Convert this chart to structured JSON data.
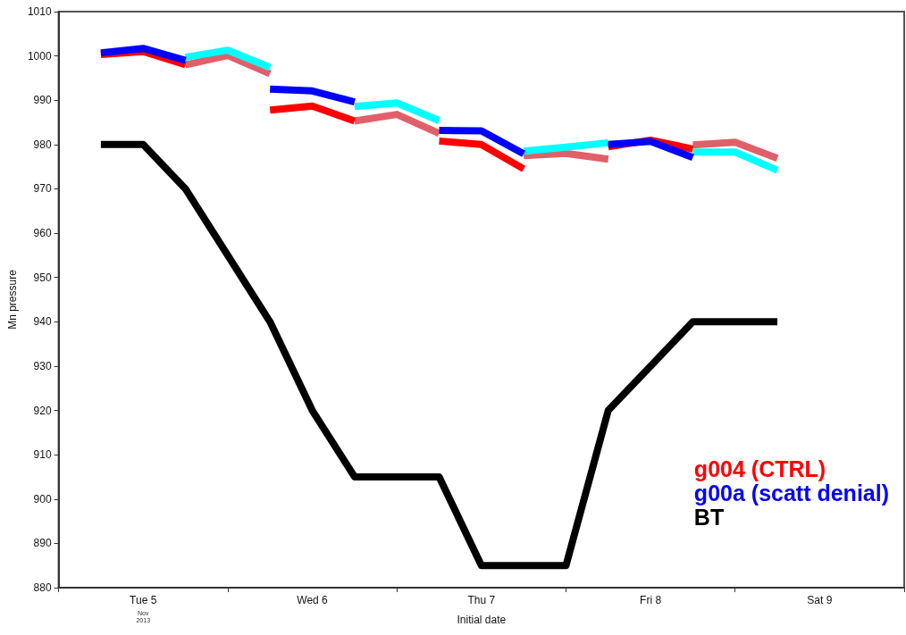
{
  "chart_data": {
    "type": "line",
    "xlabel": "Initial date",
    "ylabel": "Mn pressure",
    "annotations": [
      "Nov\n2013"
    ],
    "xlim": [
      "2013-11-05T00:00",
      "2013-11-10T00:00"
    ],
    "xticks": [
      {
        "value": "2013-11-05T00:00",
        "label": null
      },
      {
        "value": "2013-11-05T12:00",
        "label": "Tue 5"
      },
      {
        "value": "2013-11-06T00:00",
        "label": null
      },
      {
        "value": "2013-11-06T12:00",
        "label": "Wed 6"
      },
      {
        "value": "2013-11-07T00:00",
        "label": null
      },
      {
        "value": "2013-11-07T12:00",
        "label": "Thu 7"
      },
      {
        "value": "2013-11-08T00:00",
        "label": null
      },
      {
        "value": "2013-11-08T12:00",
        "label": "Fri 8"
      },
      {
        "value": "2013-11-09T00:00",
        "label": null
      },
      {
        "value": "2013-11-09T12:00",
        "label": "Sat 9"
      },
      {
        "value": "2013-11-10T00:00",
        "label": null
      }
    ],
    "ylim": [
      880,
      1010
    ],
    "yticks": [
      880,
      890,
      900,
      910,
      920,
      930,
      940,
      950,
      960,
      970,
      980,
      990,
      1000,
      1010
    ],
    "grid": false,
    "legend": "bottom right",
    "marker": "none",
    "line_style": "solid",
    "series": [
      {
        "color": "#e0606a",
        "x": [
          "2013-11-05T18:00",
          "2013-11-06T00:00",
          "2013-11-06T06:00",
          "2013-11-06T12:00",
          "2013-11-06T18:00",
          "2013-11-07T00:00",
          "2013-11-07T06:00",
          "2013-11-07T12:00",
          "2013-11-07T18:00",
          "2013-11-08T00:00",
          "2013-11-08T06:00",
          "2013-11-08T12:00",
          "2013-11-08T18:00",
          "2013-11-09T00:00",
          "2013-11-09T06:00"
        ],
        "values": [
          998.0,
          1000.1,
          996.0,
          null,
          985.3,
          986.8,
          982.5,
          null,
          977.5,
          978.0,
          976.7,
          null,
          979.9,
          980.5,
          976.9
        ]
      },
      {
        "name": "g004 (CTRL)",
        "color": "#ff0000",
        "x": [
          "2013-11-05T06:00",
          "2013-11-05T12:00",
          "2013-11-05T18:00",
          "2013-11-06T00:00",
          "2013-11-06T06:00",
          "2013-11-06T12:00",
          "2013-11-06T18:00",
          "2013-11-07T00:00",
          "2013-11-07T06:00",
          "2013-11-07T12:00",
          "2013-11-07T18:00",
          "2013-11-08T00:00",
          "2013-11-08T06:00",
          "2013-11-08T12:00",
          "2013-11-08T18:00"
        ],
        "values": [
          1000.3,
          1001.0,
          998.0,
          null,
          987.8,
          988.7,
          985.3,
          null,
          980.8,
          980.0,
          974.5,
          null,
          979.5,
          981.0,
          979.0
        ]
      },
      {
        "color": "#00ffff",
        "x": [
          "2013-11-05T18:00",
          "2013-11-06T00:00",
          "2013-11-06T06:00",
          "2013-11-06T12:00",
          "2013-11-06T18:00",
          "2013-11-07T00:00",
          "2013-11-07T06:00",
          "2013-11-07T12:00",
          "2013-11-07T18:00",
          "2013-11-08T00:00",
          "2013-11-08T06:00",
          "2013-11-08T12:00",
          "2013-11-08T18:00",
          "2013-11-09T00:00",
          "2013-11-09T06:00"
        ],
        "values": [
          999.7,
          1001.3,
          997.4,
          null,
          988.6,
          989.4,
          985.4,
          null,
          978.5,
          979.4,
          980.4,
          null,
          978.3,
          978.3,
          974.2
        ]
      },
      {
        "name": "g00a (scatt denial)",
        "color": "#0000ff",
        "x": [
          "2013-11-05T06:00",
          "2013-11-05T12:00",
          "2013-11-05T18:00",
          "2013-11-06T00:00",
          "2013-11-06T06:00",
          "2013-11-06T12:00",
          "2013-11-06T18:00",
          "2013-11-07T00:00",
          "2013-11-07T06:00",
          "2013-11-07T12:00",
          "2013-11-07T18:00",
          "2013-11-08T00:00",
          "2013-11-08T06:00",
          "2013-11-08T12:00",
          "2013-11-08T18:00"
        ],
        "values": [
          1000.7,
          1001.7,
          999.0,
          null,
          992.5,
          992.1,
          989.6,
          null,
          983.2,
          983.1,
          977.9,
          null,
          980.0,
          980.7,
          977.1
        ]
      },
      {
        "name": "BT",
        "color": "#000000",
        "x": [
          "2013-11-05T06:00",
          "2013-11-05T12:00",
          "2013-11-05T18:00",
          "2013-11-06T00:00",
          "2013-11-06T06:00",
          "2013-11-06T12:00",
          "2013-11-06T18:00",
          "2013-11-07T00:00",
          "2013-11-07T06:00",
          "2013-11-07T12:00",
          "2013-11-07T18:00",
          "2013-11-08T00:00",
          "2013-11-08T06:00",
          "2013-11-08T12:00",
          "2013-11-08T18:00",
          "2013-11-09T00:00",
          "2013-11-09T06:00"
        ],
        "values": [
          980,
          980,
          970,
          955,
          940,
          920,
          905,
          905,
          905,
          885,
          885,
          885,
          920,
          930,
          940,
          940,
          940
        ]
      }
    ]
  }
}
